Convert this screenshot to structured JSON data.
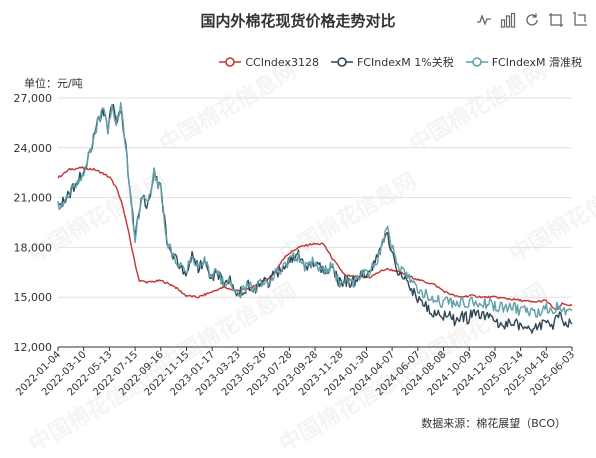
{
  "toolbox": {
    "icons": [
      "line-chart-icon",
      "bar-chart-icon",
      "restore-icon",
      "zoom-icon",
      "zoom-reset-icon"
    ]
  },
  "unit_label": "单位：元/吨",
  "source_label": "数据来源：棉花展望（BCO）",
  "watermark_text": "中国棉花信息网",
  "colors": {
    "cc": "#c23531",
    "fc1": "#2f4554",
    "fcslide": "#61a0a8"
  },
  "chart_data": {
    "type": "line",
    "title": "国内外棉花现货价格走势对比",
    "ylim": [
      12000,
      27000
    ],
    "yticks": [
      12000,
      15000,
      18000,
      21000,
      24000,
      27000
    ],
    "ytick_labels": [
      "12,000",
      "15,000",
      "18,000",
      "21,000",
      "24,000",
      "27,000"
    ],
    "xlim": [
      "2022-01-04",
      "2025-06-03"
    ],
    "xtick_labels": [
      "2022-01-04",
      "2022-03-10",
      "2022-05-13",
      "2022-07-15",
      "2022-09-16",
      "2022-11-15",
      "2023-01-17",
      "2023-03-23",
      "2023-05-26",
      "2023-07-28",
      "2023-09-28",
      "2023-11-28",
      "2024-01-30",
      "2024-04-07",
      "2024-06-07",
      "2024-08-08",
      "2024-10-09",
      "2024-12-09",
      "2025-02-14",
      "2025-04-18",
      "2025-06-03"
    ],
    "grid": true,
    "legend_position": "top-right",
    "series": [
      {
        "name": "CCIndex3128",
        "color": "#c23531",
        "points": [
          [
            "2022-01-04",
            22200
          ],
          [
            "2022-02-01",
            22700
          ],
          [
            "2022-03-01",
            22800
          ],
          [
            "2022-04-01",
            22700
          ],
          [
            "2022-04-20",
            22500
          ],
          [
            "2022-05-10",
            22200
          ],
          [
            "2022-05-25",
            21600
          ],
          [
            "2022-06-10",
            20500
          ],
          [
            "2022-06-25",
            18800
          ],
          [
            "2022-07-10",
            17000
          ],
          [
            "2022-07-20",
            16000
          ],
          [
            "2022-08-10",
            15900
          ],
          [
            "2022-09-10",
            16000
          ],
          [
            "2022-10-10",
            15700
          ],
          [
            "2022-11-10",
            15100
          ],
          [
            "2022-12-10",
            15000
          ],
          [
            "2023-01-10",
            15300
          ],
          [
            "2023-02-10",
            15600
          ],
          [
            "2023-03-10",
            15400
          ],
          [
            "2023-04-10",
            15500
          ],
          [
            "2023-05-10",
            15800
          ],
          [
            "2023-06-10",
            16400
          ],
          [
            "2023-07-10",
            17500
          ],
          [
            "2023-08-10",
            18000
          ],
          [
            "2023-09-10",
            18200
          ],
          [
            "2023-10-10",
            18200
          ],
          [
            "2023-11-01",
            17300
          ],
          [
            "2023-12-01",
            16300
          ],
          [
            "2024-01-01",
            16200
          ],
          [
            "2024-01-30",
            16200
          ],
          [
            "2024-02-20",
            16500
          ],
          [
            "2024-03-10",
            16700
          ],
          [
            "2024-04-01",
            16600
          ],
          [
            "2024-05-01",
            16300
          ],
          [
            "2024-06-01",
            16000
          ],
          [
            "2024-07-01",
            15800
          ],
          [
            "2024-08-01",
            15300
          ],
          [
            "2024-09-01",
            15000
          ],
          [
            "2024-10-01",
            15100
          ],
          [
            "2024-11-01",
            15000
          ],
          [
            "2024-12-01",
            15000
          ],
          [
            "2025-01-01",
            14900
          ],
          [
            "2025-02-01",
            14800
          ],
          [
            "2025-03-01",
            14700
          ],
          [
            "2025-04-01",
            14800
          ],
          [
            "2025-04-25",
            14200
          ],
          [
            "2025-05-10",
            14600
          ],
          [
            "2025-06-03",
            14500
          ]
        ]
      },
      {
        "name": "FCIndexM 1%关税",
        "color": "#2f4554",
        "points": [
          [
            "2022-01-04",
            20500
          ],
          [
            "2022-01-25",
            21000
          ],
          [
            "2022-02-20",
            22000
          ],
          [
            "2022-03-10",
            22500
          ],
          [
            "2022-03-25",
            24000
          ],
          [
            "2022-04-10",
            25500
          ],
          [
            "2022-04-25",
            26200
          ],
          [
            "2022-05-05",
            25000
          ],
          [
            "2022-05-15",
            26800
          ],
          [
            "2022-05-25",
            25500
          ],
          [
            "2022-06-05",
            26500
          ],
          [
            "2022-06-20",
            23500
          ],
          [
            "2022-07-01",
            20500
          ],
          [
            "2022-07-10",
            18500
          ],
          [
            "2022-07-25",
            21000
          ],
          [
            "2022-08-10",
            20500
          ],
          [
            "2022-08-25",
            22500
          ],
          [
            "2022-09-10",
            21500
          ],
          [
            "2022-09-25",
            18500
          ],
          [
            "2022-10-10",
            17500
          ],
          [
            "2022-10-25",
            17000
          ],
          [
            "2022-11-10",
            16500
          ],
          [
            "2022-11-25",
            17500
          ],
          [
            "2022-12-10",
            16800
          ],
          [
            "2022-12-25",
            17200
          ],
          [
            "2023-01-10",
            16200
          ],
          [
            "2023-01-25",
            16500
          ],
          [
            "2023-02-10",
            15900
          ],
          [
            "2023-02-25",
            16100
          ],
          [
            "2023-03-10",
            15400
          ],
          [
            "2023-03-23",
            15300
          ],
          [
            "2023-04-10",
            15700
          ],
          [
            "2023-04-25",
            15500
          ],
          [
            "2023-05-10",
            15900
          ],
          [
            "2023-05-26",
            15800
          ],
          [
            "2023-06-15",
            16500
          ],
          [
            "2023-07-01",
            16600
          ],
          [
            "2023-07-20",
            17200
          ],
          [
            "2023-08-10",
            17500
          ],
          [
            "2023-08-25",
            16800
          ],
          [
            "2023-09-10",
            17100
          ],
          [
            "2023-09-28",
            16900
          ],
          [
            "2023-10-15",
            16700
          ],
          [
            "2023-11-01",
            16900
          ],
          [
            "2023-11-15",
            15900
          ],
          [
            "2023-12-01",
            16000
          ],
          [
            "2023-12-15",
            15800
          ],
          [
            "2024-01-05",
            16300
          ],
          [
            "2024-01-30",
            16600
          ],
          [
            "2024-02-15",
            17200
          ],
          [
            "2024-03-01",
            18200
          ],
          [
            "2024-03-10",
            18900
          ],
          [
            "2024-03-20",
            18000
          ],
          [
            "2024-04-07",
            16600
          ],
          [
            "2024-04-25",
            16000
          ],
          [
            "2024-05-10",
            15400
          ],
          [
            "2024-05-25",
            15000
          ],
          [
            "2024-06-07",
            14800
          ],
          [
            "2024-06-20",
            14300
          ],
          [
            "2024-07-05",
            14000
          ],
          [
            "2024-07-20",
            13800
          ],
          [
            "2024-08-08",
            14200
          ],
          [
            "2024-08-25",
            13500
          ],
          [
            "2024-09-10",
            13900
          ],
          [
            "2024-09-25",
            13700
          ],
          [
            "2024-10-09",
            14200
          ],
          [
            "2024-10-25",
            13800
          ],
          [
            "2024-11-10",
            13900
          ],
          [
            "2024-11-25",
            13600
          ],
          [
            "2024-12-09",
            13500
          ],
          [
            "2024-12-25",
            13400
          ],
          [
            "2025-01-10",
            13600
          ],
          [
            "2025-01-25",
            13300
          ],
          [
            "2025-02-14",
            13200
          ],
          [
            "2025-03-01",
            13100
          ],
          [
            "2025-03-20",
            13400
          ],
          [
            "2025-04-05",
            13500
          ],
          [
            "2025-04-18",
            13400
          ],
          [
            "2025-05-01",
            13800
          ],
          [
            "2025-05-15",
            13600
          ],
          [
            "2025-06-03",
            13400
          ]
        ]
      },
      {
        "name": "FCIndexM 滑准税",
        "color": "#61a0a8",
        "points": [
          [
            "2022-01-04",
            20500
          ],
          [
            "2022-01-25",
            21000
          ],
          [
            "2022-02-20",
            22000
          ],
          [
            "2022-03-10",
            22500
          ],
          [
            "2022-03-25",
            24000
          ],
          [
            "2022-04-10",
            25500
          ],
          [
            "2022-04-25",
            26200
          ],
          [
            "2022-05-05",
            25000
          ],
          [
            "2022-05-15",
            26800
          ],
          [
            "2022-05-25",
            25500
          ],
          [
            "2022-06-05",
            26500
          ],
          [
            "2022-06-20",
            23500
          ],
          [
            "2022-07-01",
            20500
          ],
          [
            "2022-07-10",
            18500
          ],
          [
            "2022-07-25",
            21000
          ],
          [
            "2022-08-10",
            20500
          ],
          [
            "2022-08-25",
            22500
          ],
          [
            "2022-09-10",
            21500
          ],
          [
            "2022-09-25",
            18500
          ],
          [
            "2022-10-10",
            17500
          ],
          [
            "2022-10-25",
            17000
          ],
          [
            "2022-11-10",
            16500
          ],
          [
            "2022-11-25",
            17500
          ],
          [
            "2022-12-10",
            16800
          ],
          [
            "2022-12-25",
            17200
          ],
          [
            "2023-01-10",
            16200
          ],
          [
            "2023-01-25",
            16500
          ],
          [
            "2023-02-10",
            15900
          ],
          [
            "2023-02-25",
            16100
          ],
          [
            "2023-03-10",
            15400
          ],
          [
            "2023-03-23",
            15300
          ],
          [
            "2023-04-10",
            15700
          ],
          [
            "2023-04-25",
            15500
          ],
          [
            "2023-05-10",
            15900
          ],
          [
            "2023-05-26",
            15800
          ],
          [
            "2023-06-15",
            16500
          ],
          [
            "2023-07-01",
            16600
          ],
          [
            "2023-07-20",
            17200
          ],
          [
            "2023-08-10",
            17500
          ],
          [
            "2023-08-25",
            16800
          ],
          [
            "2023-09-10",
            17100
          ],
          [
            "2023-09-28",
            16900
          ],
          [
            "2023-10-15",
            16700
          ],
          [
            "2023-11-01",
            16900
          ],
          [
            "2023-11-15",
            15900
          ],
          [
            "2023-12-01",
            16000
          ],
          [
            "2023-12-15",
            15800
          ],
          [
            "2024-01-05",
            16300
          ],
          [
            "2024-01-30",
            16600
          ],
          [
            "2024-02-15",
            17200
          ],
          [
            "2024-03-01",
            18200
          ],
          [
            "2024-03-10",
            19300
          ],
          [
            "2024-03-20",
            18300
          ],
          [
            "2024-04-07",
            16900
          ],
          [
            "2024-04-25",
            16400
          ],
          [
            "2024-05-10",
            15900
          ],
          [
            "2024-05-25",
            15600
          ],
          [
            "2024-06-07",
            15300
          ],
          [
            "2024-06-20",
            15100
          ],
          [
            "2024-07-05",
            14900
          ],
          [
            "2024-07-20",
            14700
          ],
          [
            "2024-08-08",
            14900
          ],
          [
            "2024-08-25",
            14500
          ],
          [
            "2024-09-10",
            14700
          ],
          [
            "2024-09-25",
            14600
          ],
          [
            "2024-10-09",
            14800
          ],
          [
            "2024-10-25",
            14600
          ],
          [
            "2024-11-10",
            14600
          ],
          [
            "2024-11-25",
            14400
          ],
          [
            "2024-12-09",
            14400
          ],
          [
            "2024-12-25",
            14300
          ],
          [
            "2025-01-10",
            14400
          ],
          [
            "2025-01-25",
            14200
          ],
          [
            "2025-02-14",
            14100
          ],
          [
            "2025-03-01",
            14000
          ],
          [
            "2025-03-20",
            14200
          ],
          [
            "2025-04-05",
            14300
          ],
          [
            "2025-04-18",
            14200
          ],
          [
            "2025-05-01",
            14500
          ],
          [
            "2025-05-15",
            14300
          ],
          [
            "2025-06-03",
            14200
          ]
        ]
      }
    ]
  }
}
